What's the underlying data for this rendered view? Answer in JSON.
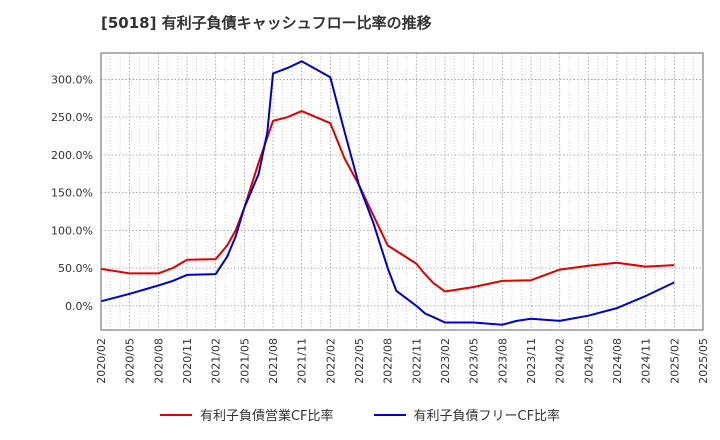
{
  "title": "[5018]  有利子負債キャッシュフロー比率の推移",
  "chart_data": {
    "type": "line",
    "title": "[5018]  有利子負債キャッシュフロー比率の推移",
    "xlabel": "",
    "ylabel": "",
    "ylim": [
      -32,
      335
    ],
    "yticks": [
      0,
      50,
      100,
      150,
      200,
      250,
      300
    ],
    "ytick_labels": [
      "0.0%",
      "50.0%",
      "100.0%",
      "150.0%",
      "200.0%",
      "250.0%",
      "300.0%"
    ],
    "categories": [
      "2020/02",
      "2020/05",
      "2020/08",
      "2020/11",
      "2021/02",
      "2021/05",
      "2021/08",
      "2021/11",
      "2022/02",
      "2022/05",
      "2022/08",
      "2022/11",
      "2023/02",
      "2023/05",
      "2023/08",
      "2023/11",
      "2024/02",
      "2024/05",
      "2024/08",
      "2024/11",
      "2025/02",
      "2025/05"
    ],
    "grid": true,
    "legend_position": "bottom",
    "series": [
      {
        "name": "有利子負債営業CF比率",
        "color": "#dd0000",
        "points": [
          [
            0,
            49
          ],
          [
            1,
            43
          ],
          [
            2,
            43
          ],
          [
            2.5,
            50
          ],
          [
            3,
            61
          ],
          [
            4,
            62
          ],
          [
            4.4,
            80
          ],
          [
            4.7,
            100
          ],
          [
            5,
            130
          ],
          [
            5.5,
            190
          ],
          [
            6,
            245
          ],
          [
            6.5,
            250
          ],
          [
            7,
            258
          ],
          [
            8,
            242
          ],
          [
            8.5,
            195
          ],
          [
            9,
            160
          ],
          [
            9.5,
            120
          ],
          [
            10,
            80
          ],
          [
            10.5,
            68
          ],
          [
            11,
            56
          ],
          [
            11.3,
            42
          ],
          [
            11.6,
            30
          ],
          [
            12,
            19
          ],
          [
            13,
            25
          ],
          [
            14,
            33
          ],
          [
            15,
            34
          ],
          [
            16,
            48
          ],
          [
            17,
            53
          ],
          [
            18,
            57
          ],
          [
            19,
            52
          ],
          [
            20,
            54
          ]
        ]
      },
      {
        "name": "有利子負債フリーCF比率",
        "color": "#0000cc",
        "points": [
          [
            0,
            6
          ],
          [
            1,
            16
          ],
          [
            2,
            27
          ],
          [
            2.5,
            33
          ],
          [
            3,
            41
          ],
          [
            4,
            42
          ],
          [
            4.4,
            65
          ],
          [
            4.7,
            92
          ],
          [
            5,
            130
          ],
          [
            5.5,
            175
          ],
          [
            5.8,
            230
          ],
          [
            6,
            308
          ],
          [
            6.5,
            315
          ],
          [
            7,
            324
          ],
          [
            8,
            303
          ],
          [
            8.5,
            230
          ],
          [
            9,
            160
          ],
          [
            9.5,
            110
          ],
          [
            10,
            50
          ],
          [
            10.3,
            20
          ],
          [
            11,
            0
          ],
          [
            11.3,
            -10
          ],
          [
            11.6,
            -15
          ],
          [
            12,
            -22
          ],
          [
            13,
            -22
          ],
          [
            14,
            -25
          ],
          [
            14.5,
            -20
          ],
          [
            15,
            -17
          ],
          [
            16,
            -20
          ],
          [
            17,
            -13
          ],
          [
            18,
            -3
          ],
          [
            19,
            13
          ],
          [
            20,
            31
          ]
        ]
      }
    ]
  }
}
